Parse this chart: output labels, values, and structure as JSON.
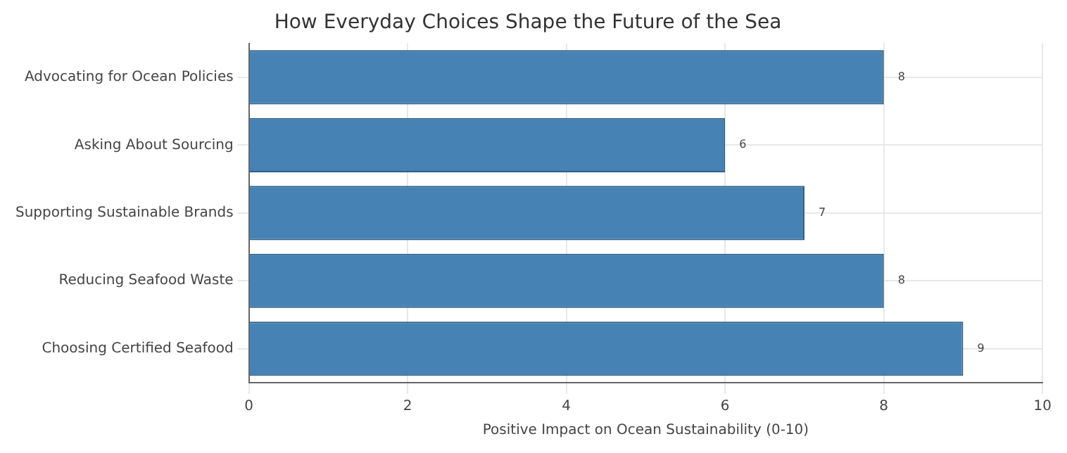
{
  "chart_data": {
    "type": "bar",
    "orientation": "horizontal",
    "title": "How Everyday Choices Shape the Future of the Sea",
    "xlabel": "Positive Impact on Ocean Sustainability (0-10)",
    "categories": [
      "Advocating for Ocean Policies",
      "Asking About Sourcing",
      "Supporting Sustainable Brands",
      "Reducing Seafood Waste",
      "Choosing Certified Seafood"
    ],
    "values": [
      8,
      6,
      7,
      8,
      9
    ],
    "color": "#4682b4",
    "xlim": [
      0,
      10
    ],
    "xticks": [
      0,
      2,
      4,
      6,
      8,
      10
    ],
    "grid": true,
    "data_labels": true
  }
}
